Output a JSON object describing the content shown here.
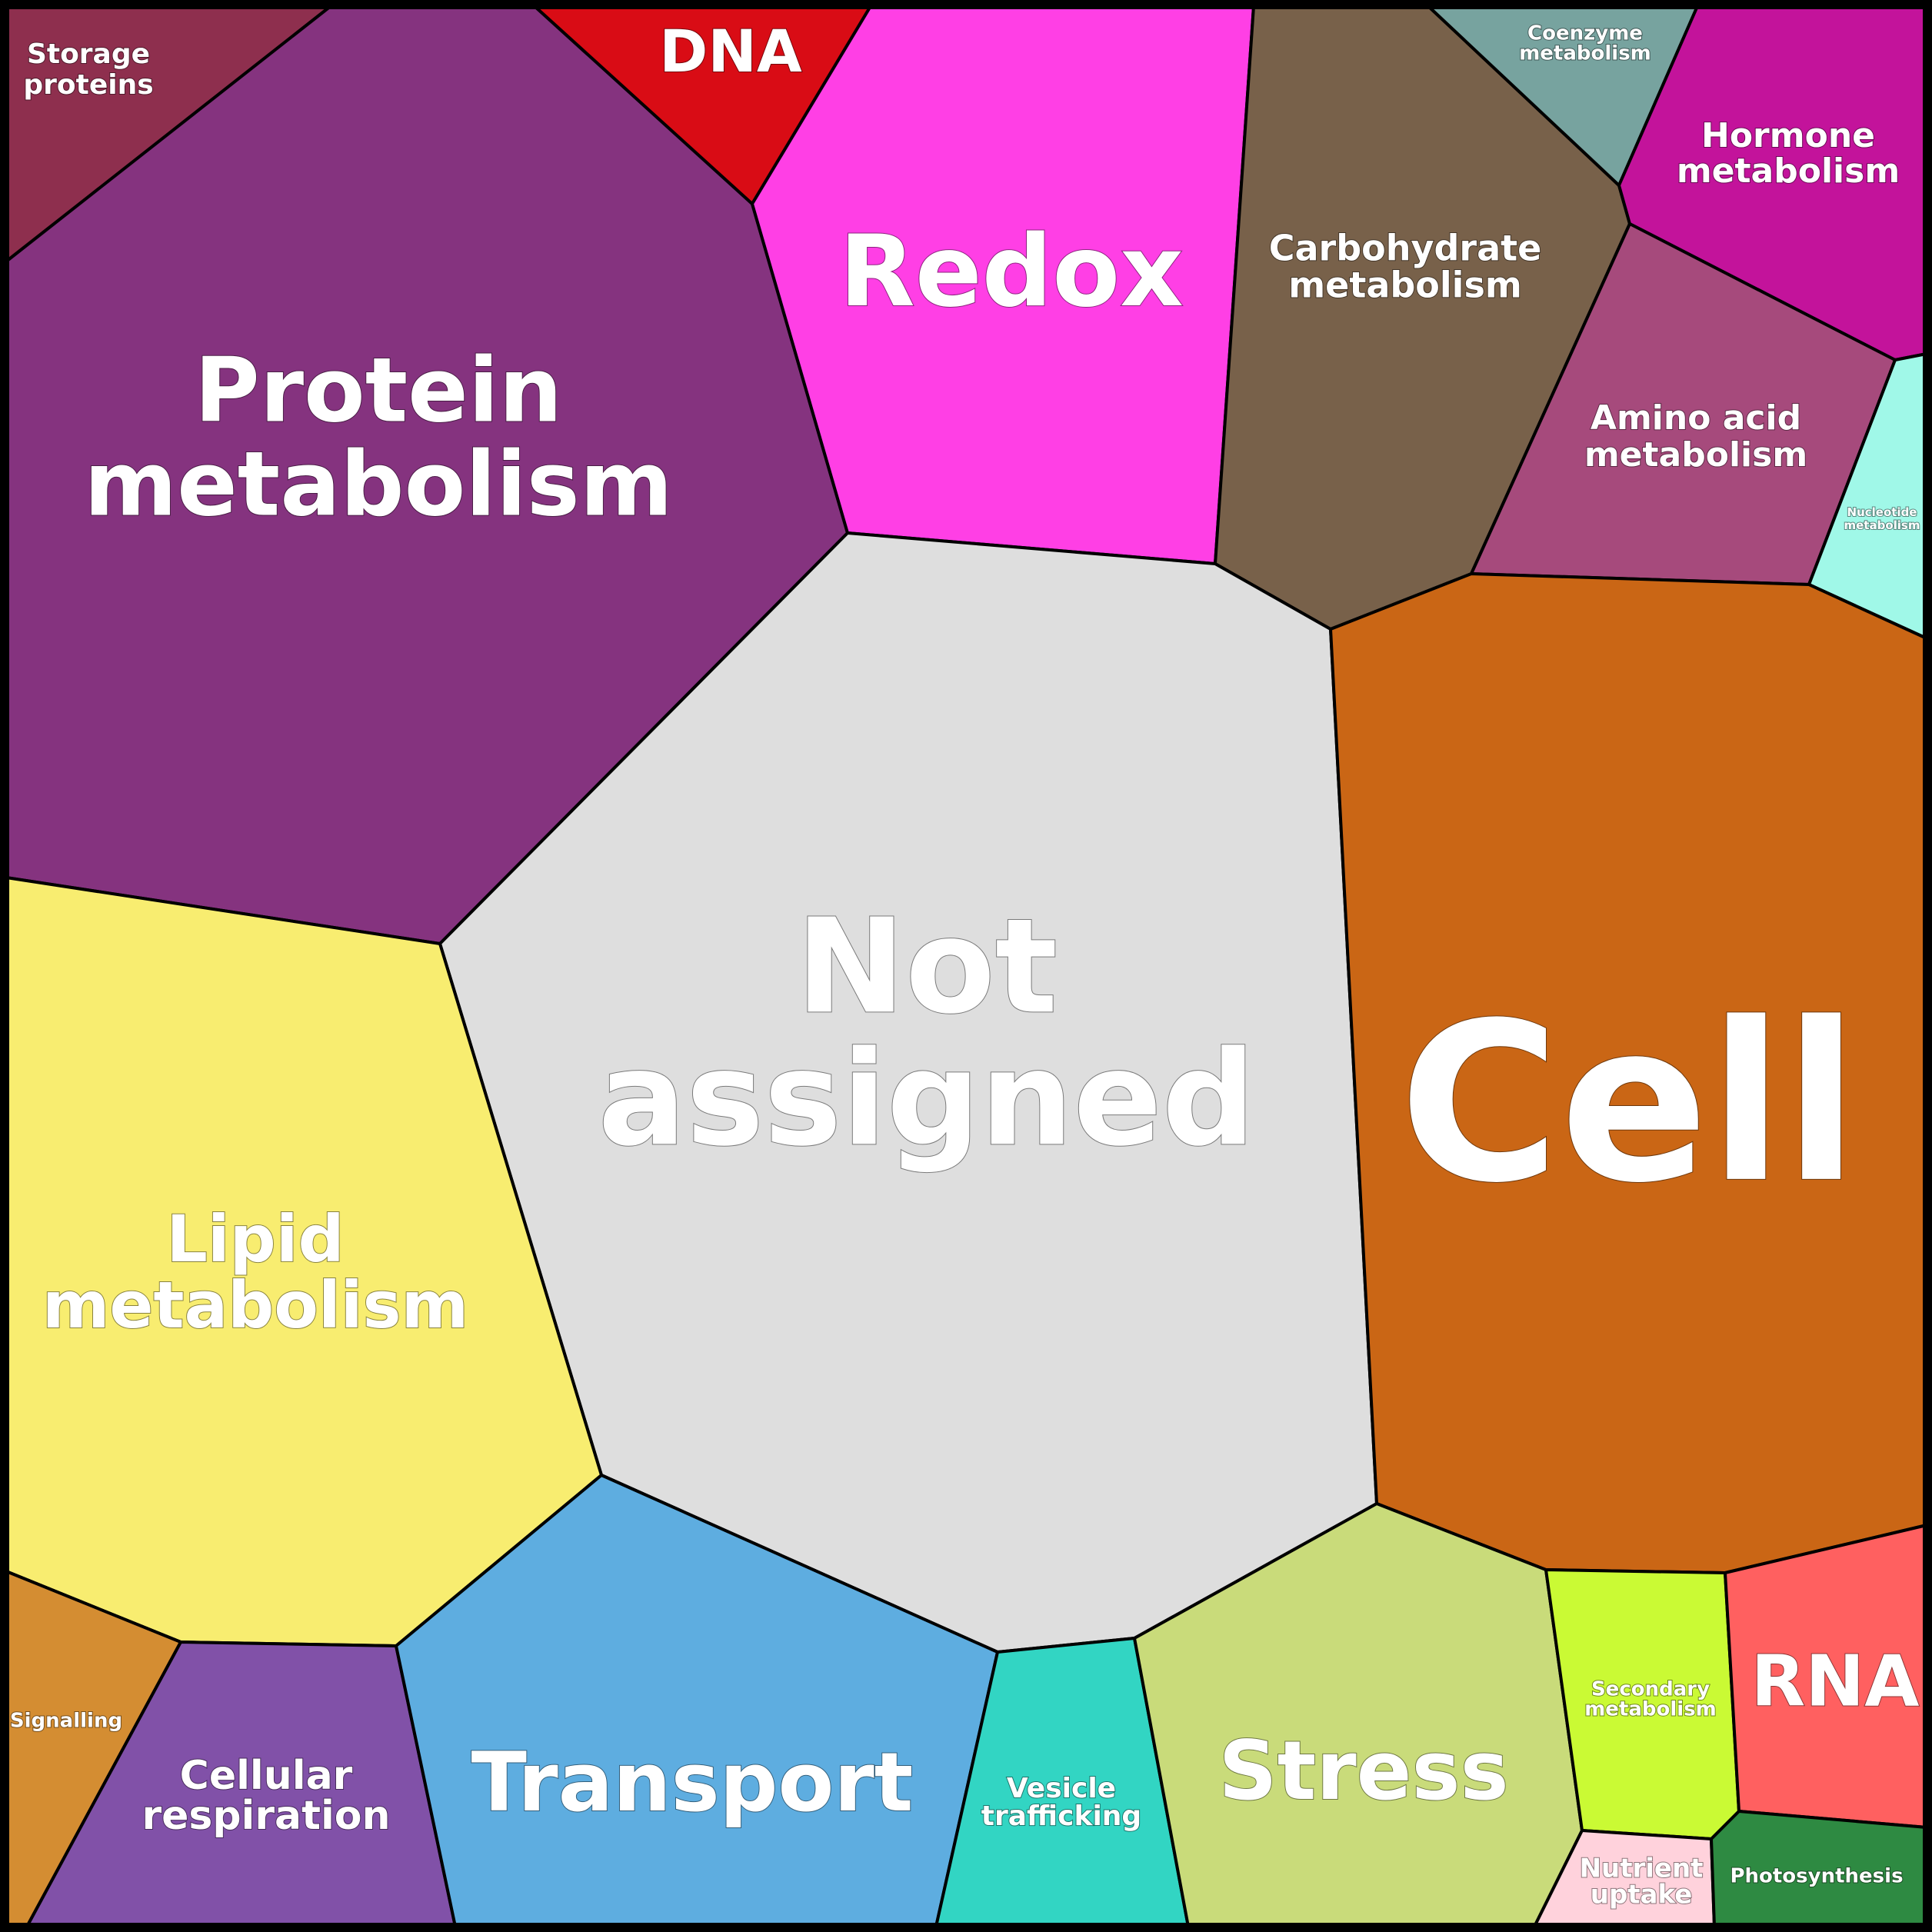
{
  "diagram": {
    "type": "voronoi-treemap",
    "cells": [
      {
        "id": "storage-proteins",
        "lines": [
          "Storage",
          "proteins"
        ],
        "color": "#8e2f4e"
      },
      {
        "id": "protein-metabolism",
        "lines": [
          "Protein",
          "metabolism"
        ],
        "color": "#85337f"
      },
      {
        "id": "dna",
        "lines": [
          "DNA"
        ],
        "color": "#d90c15"
      },
      {
        "id": "redox",
        "lines": [
          "Redox"
        ],
        "color": "#ff3fe5"
      },
      {
        "id": "carbohydrate-metabolism",
        "lines": [
          "Carbohydrate",
          "metabolism"
        ],
        "color": "#78614a"
      },
      {
        "id": "coenzyme-metabolism",
        "lines": [
          "Coenzyme",
          "metabolism"
        ],
        "color": "#77a39f"
      },
      {
        "id": "hormone-metabolism",
        "lines": [
          "Hormone",
          "metabolism"
        ],
        "color": "#c3139b"
      },
      {
        "id": "amino-acid-metabolism",
        "lines": [
          "Amino acid",
          "metabolism"
        ],
        "color": "#a64a7c"
      },
      {
        "id": "nucleotide-metabolism",
        "lines": [
          "Nucleotide",
          "metabolism"
        ],
        "color": "#a0f8e8"
      },
      {
        "id": "not-assigned",
        "lines": [
          "Not",
          "assigned"
        ],
        "color": "#dedede"
      },
      {
        "id": "cell",
        "lines": [
          "Cell"
        ],
        "color": "#ca6615"
      },
      {
        "id": "lipid-metabolism",
        "lines": [
          "Lipid",
          "metabolism"
        ],
        "color": "#f8ed70"
      },
      {
        "id": "signalling",
        "lines": [
          "Signalling"
        ],
        "color": "#d48d32"
      },
      {
        "id": "cellular-respiration",
        "lines": [
          "Cellular",
          "respiration"
        ],
        "color": "#8151a8"
      },
      {
        "id": "transport",
        "lines": [
          "Transport"
        ],
        "color": "#5eade0"
      },
      {
        "id": "vesicle-trafficking",
        "lines": [
          "Vesicle",
          "trafficking"
        ],
        "color": "#32d5c3"
      },
      {
        "id": "stress",
        "lines": [
          "Stress"
        ],
        "color": "#c9db7a"
      },
      {
        "id": "secondary-metabolism",
        "lines": [
          "Secondary",
          "metabolism"
        ],
        "color": "#cafa34"
      },
      {
        "id": "rna",
        "lines": [
          "RNA"
        ],
        "color": "#ff6060"
      },
      {
        "id": "nutrient-uptake",
        "lines": [
          "Nutrient",
          "uptake"
        ],
        "color": "#ffd2dc"
      },
      {
        "id": "photosynthesis",
        "lines": [
          "Photosynthesis"
        ],
        "color": "#2e8a42"
      }
    ]
  }
}
